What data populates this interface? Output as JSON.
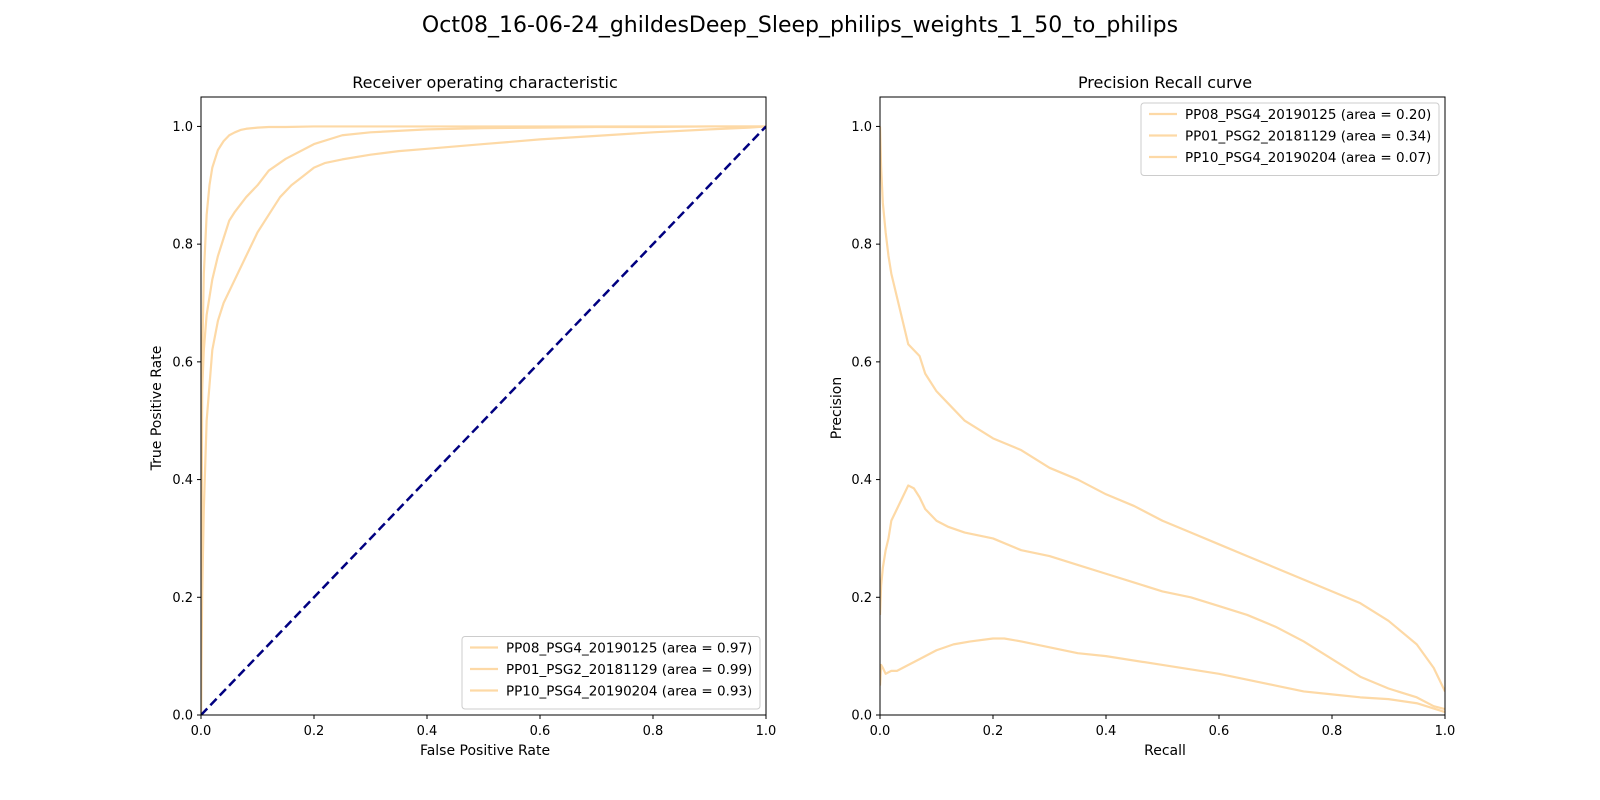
{
  "figure": {
    "suptitle": "Oct08_16-06-24_ghildesDeep_Sleep_philips_weights_1_50_to_philips"
  },
  "chart_data": [
    {
      "type": "line",
      "title": "Receiver operating characteristic",
      "xlabel": "False Positive Rate",
      "ylabel": "True Positive Rate",
      "xlim": [
        0,
        1
      ],
      "ylim": [
        0,
        1.05
      ],
      "xticks": [
        "0.0",
        "0.2",
        "0.4",
        "0.6",
        "0.8",
        "1.0"
      ],
      "yticks": [
        "0.0",
        "0.2",
        "0.4",
        "0.6",
        "0.8",
        "1.0"
      ],
      "legend_position": "lower-right",
      "grid": false,
      "series": [
        {
          "name": "PP08_PSG4_20190125 (area = 0.97)",
          "color": "#fdd9a6",
          "x": [
            0,
            0.002,
            0.005,
            0.01,
            0.02,
            0.03,
            0.04,
            0.05,
            0.06,
            0.08,
            0.1,
            0.12,
            0.15,
            0.2,
            0.25,
            0.3,
            0.4,
            0.5,
            0.6,
            0.7,
            0.8,
            0.9,
            1.0
          ],
          "y": [
            0,
            0.55,
            0.62,
            0.68,
            0.74,
            0.78,
            0.81,
            0.84,
            0.855,
            0.88,
            0.9,
            0.925,
            0.945,
            0.97,
            0.985,
            0.99,
            0.995,
            0.997,
            0.998,
            0.999,
            0.999,
            1.0,
            1.0
          ]
        },
        {
          "name": "PP01_PSG2_20181129 (area = 0.99)",
          "color": "#fdd9a6",
          "x": [
            0,
            0.002,
            0.005,
            0.01,
            0.015,
            0.02,
            0.03,
            0.04,
            0.05,
            0.06,
            0.07,
            0.08,
            0.1,
            0.12,
            0.15,
            0.2,
            0.3,
            0.5,
            0.7,
            1.0
          ],
          "y": [
            0,
            0.6,
            0.75,
            0.85,
            0.9,
            0.93,
            0.96,
            0.975,
            0.985,
            0.99,
            0.994,
            0.996,
            0.998,
            0.999,
            0.999,
            1.0,
            1.0,
            1.0,
            1.0,
            1.0
          ]
        },
        {
          "name": "PP10_PSG4_20190204 (area = 0.93)",
          "color": "#fdd9a6",
          "x": [
            0,
            0.002,
            0.005,
            0.01,
            0.02,
            0.03,
            0.04,
            0.06,
            0.08,
            0.1,
            0.12,
            0.14,
            0.16,
            0.18,
            0.2,
            0.22,
            0.25,
            0.3,
            0.35,
            0.4,
            0.5,
            0.6,
            0.7,
            0.8,
            0.9,
            0.97,
            1.0
          ],
          "y": [
            0,
            0.2,
            0.35,
            0.5,
            0.62,
            0.67,
            0.7,
            0.74,
            0.78,
            0.82,
            0.85,
            0.88,
            0.9,
            0.915,
            0.93,
            0.938,
            0.944,
            0.952,
            0.958,
            0.962,
            0.97,
            0.978,
            0.984,
            0.99,
            0.995,
            0.998,
            1.0
          ]
        },
        {
          "name": "",
          "color": "#000080",
          "dashed": true,
          "x": [
            0,
            1
          ],
          "y": [
            0,
            1
          ]
        }
      ]
    },
    {
      "type": "line",
      "title": "Precision Recall curve",
      "xlabel": "Recall",
      "ylabel": "Precision",
      "xlim": [
        0,
        1
      ],
      "ylim": [
        0,
        1.05
      ],
      "xticks": [
        "0.0",
        "0.2",
        "0.4",
        "0.6",
        "0.8",
        "1.0"
      ],
      "yticks": [
        "0.0",
        "0.2",
        "0.4",
        "0.6",
        "0.8",
        "1.0"
      ],
      "legend_position": "upper-right",
      "grid": false,
      "series": [
        {
          "name": "PP08_PSG4_20190125 (area = 0.20)",
          "color": "#fdd9a6",
          "x": [
            0,
            0.002,
            0.005,
            0.01,
            0.015,
            0.02,
            0.03,
            0.04,
            0.05,
            0.06,
            0.07,
            0.08,
            0.1,
            0.12,
            0.15,
            0.2,
            0.25,
            0.3,
            0.35,
            0.4,
            0.45,
            0.5,
            0.55,
            0.6,
            0.65,
            0.7,
            0.75,
            0.8,
            0.85,
            0.9,
            0.95,
            0.98,
            1.0
          ],
          "y": [
            0.17,
            0.22,
            0.25,
            0.28,
            0.3,
            0.33,
            0.35,
            0.37,
            0.39,
            0.385,
            0.37,
            0.35,
            0.33,
            0.32,
            0.31,
            0.3,
            0.28,
            0.27,
            0.255,
            0.24,
            0.225,
            0.21,
            0.2,
            0.185,
            0.17,
            0.15,
            0.125,
            0.095,
            0.065,
            0.045,
            0.03,
            0.015,
            0.01
          ]
        },
        {
          "name": "PP01_PSG2_20181129 (area = 0.34)",
          "color": "#fdd9a6",
          "x": [
            0,
            0.002,
            0.005,
            0.01,
            0.015,
            0.02,
            0.025,
            0.03,
            0.04,
            0.05,
            0.06,
            0.07,
            0.08,
            0.1,
            0.12,
            0.15,
            0.2,
            0.25,
            0.3,
            0.35,
            0.4,
            0.45,
            0.5,
            0.55,
            0.6,
            0.65,
            0.7,
            0.75,
            0.8,
            0.85,
            0.9,
            0.95,
            0.98,
            1.0
          ],
          "y": [
            1.0,
            0.93,
            0.87,
            0.82,
            0.78,
            0.75,
            0.73,
            0.71,
            0.67,
            0.63,
            0.62,
            0.61,
            0.58,
            0.55,
            0.53,
            0.5,
            0.47,
            0.45,
            0.42,
            0.4,
            0.375,
            0.355,
            0.33,
            0.31,
            0.29,
            0.27,
            0.25,
            0.23,
            0.21,
            0.19,
            0.16,
            0.12,
            0.08,
            0.04
          ]
        },
        {
          "name": "PP10_PSG4_20190204 (area = 0.07)",
          "color": "#fdd9a6",
          "x": [
            0,
            0.002,
            0.005,
            0.01,
            0.02,
            0.03,
            0.05,
            0.07,
            0.1,
            0.13,
            0.16,
            0.2,
            0.22,
            0.25,
            0.3,
            0.35,
            0.4,
            0.5,
            0.6,
            0.7,
            0.75,
            0.8,
            0.85,
            0.9,
            0.95,
            1.0
          ],
          "y": [
            0.05,
            0.085,
            0.08,
            0.07,
            0.075,
            0.075,
            0.085,
            0.095,
            0.11,
            0.12,
            0.125,
            0.13,
            0.13,
            0.125,
            0.115,
            0.105,
            0.1,
            0.085,
            0.07,
            0.05,
            0.04,
            0.035,
            0.03,
            0.027,
            0.02,
            0.005
          ]
        }
      ]
    }
  ]
}
